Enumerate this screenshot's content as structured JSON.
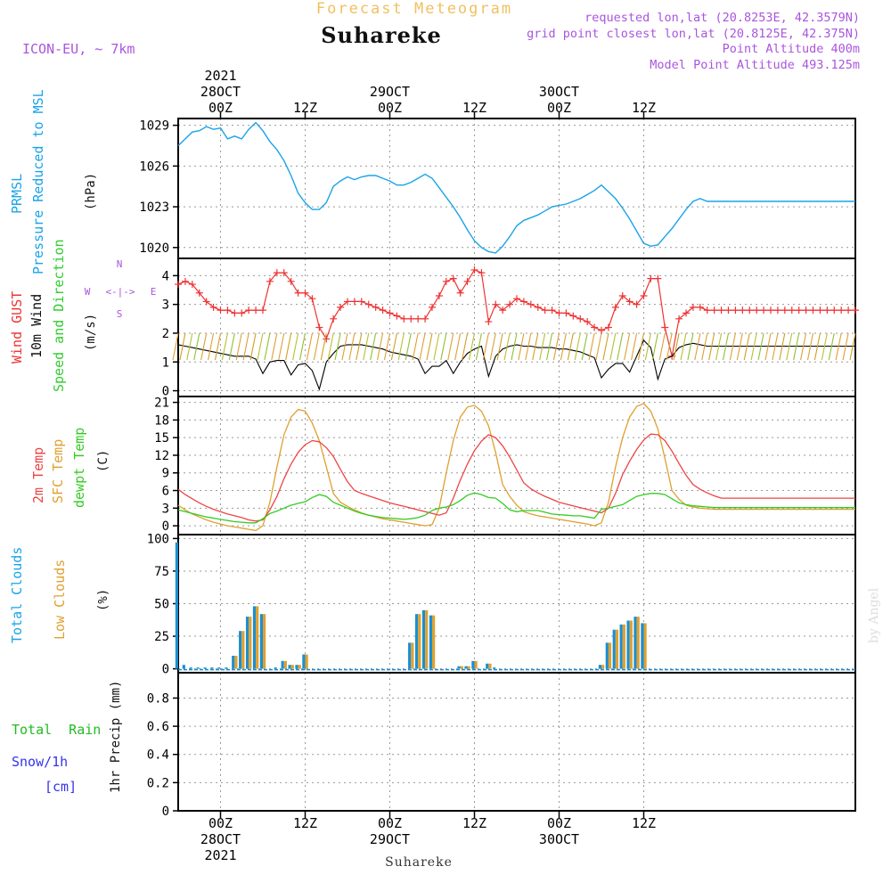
{
  "header": {
    "title": "Forecast Meteogram",
    "location": "Suhareke",
    "model": "ICON-EU, ~ 7km",
    "requested": "requested lon,lat (20.8253E, 42.3579N)",
    "grid_point": "grid point closest lon,lat (20.8125E, 42.375N)",
    "point_altitude": "Point Altitude 400m",
    "model_altitude": "Model Point Altitude 493.125m",
    "footer_location": "Suhareke",
    "watermark": "by Angel"
  },
  "colors": {
    "pressure": "#1aa3e8",
    "gust": "#ee3333",
    "wind": "#000000",
    "wind_arrows": "#33cc33",
    "temp2m": "#ee4444",
    "sfc_temp": "#e0a030",
    "dewpt": "#33cc22",
    "total_clouds": "#1a8fd0",
    "low_clouds": "#e0a030",
    "rain": "#22bb22",
    "snow": "#3333ee",
    "label_purple": "#aa55dd",
    "title_orange": "#f0c060"
  },
  "chart_data": [
    {
      "type": "line",
      "name": "pressure",
      "ylabel_colored": [
        "PRMSL",
        "Pressure Reduced to MSL"
      ],
      "unit": "(hPa)",
      "yticks": [
        1020,
        1023,
        1026,
        1029
      ],
      "ylim": [
        1019.2,
        1029.5
      ],
      "grid": true,
      "x": [
        -6,
        -5,
        -4,
        -3,
        -2,
        -1,
        0,
        1,
        2,
        3,
        4,
        5,
        6,
        7,
        8,
        9,
        10,
        11,
        12,
        13,
        14,
        15,
        16,
        17,
        18,
        19,
        20,
        21,
        22,
        23,
        24,
        25,
        26,
        27,
        28,
        29,
        30,
        31,
        32,
        33,
        34,
        35,
        36,
        37,
        38,
        39,
        40,
        41,
        42,
        43,
        44,
        45,
        46,
        47,
        48,
        49,
        50,
        51,
        52,
        53,
        54,
        55,
        56,
        57,
        58,
        59,
        60,
        61,
        62,
        63,
        64,
        65,
        66,
        67,
        68,
        69,
        70,
        71,
        72,
        73,
        74,
        75,
        76,
        77,
        78,
        79,
        80,
        81,
        82,
        83,
        84,
        85,
        86,
        87,
        88,
        89,
        90
      ],
      "series": [
        {
          "values": [
            1027.5,
            1028.0,
            1028.5,
            1028.6,
            1028.9,
            1028.7,
            1028.8,
            1028.0,
            1028.2,
            1028.0,
            1028.7,
            1029.2,
            1028.6,
            1027.8,
            1027.2,
            1026.4,
            1025.3,
            1024.0,
            1023.3,
            1022.8,
            1022.8,
            1023.3,
            1024.5,
            1024.9,
            1025.2,
            1025.0,
            1025.2,
            1025.3,
            1025.3,
            1025.1,
            1024.9,
            1024.6,
            1024.6,
            1024.8,
            1025.1,
            1025.4,
            1025.1,
            1024.4,
            1023.7,
            1023.0,
            1022.2,
            1021.3,
            1020.5,
            1020.0,
            1019.7,
            1019.6,
            1020.1,
            1020.8,
            1021.6,
            1022.0,
            1022.2,
            1022.4,
            1022.7,
            1023.0,
            1023.1,
            1023.2,
            1023.4,
            1023.6,
            1023.9,
            1024.2,
            1024.6,
            1024.1,
            1023.6,
            1022.9,
            1022.1,
            1021.2,
            1020.3,
            1020.1,
            1020.2,
            1020.8,
            1021.4,
            1022.1,
            1022.8,
            1023.4,
            1023.6,
            1023.4,
            1023.4,
            1023.4,
            1023.4,
            1023.4,
            1023.4,
            1023.4,
            1023.4,
            1023.4,
            1023.4,
            1023.4,
            1023.4,
            1023.4,
            1023.4,
            1023.4,
            1023.4,
            1023.4,
            1023.4,
            1023.4,
            1023.4,
            1023.4,
            1023.4
          ]
        }
      ]
    },
    {
      "type": "line",
      "name": "wind",
      "ylabel_colored": [
        "Wind GUST",
        "10m Wind",
        "Speed and Direction"
      ],
      "unit": "(m/s)",
      "compass": {
        "n": "N",
        "s": "S",
        "w": "W",
        "e": "E",
        "arrow": "<-|->"
      },
      "yticks": [
        0,
        1,
        2,
        3,
        4
      ],
      "ylim": [
        -0.2,
        4.6
      ],
      "grid": true,
      "gust_x": [
        -6,
        -5,
        -4,
        -3,
        -2,
        -1,
        0,
        1,
        2,
        3,
        4,
        5,
        6,
        7,
        8,
        9,
        10,
        11,
        12,
        13,
        14,
        15,
        16,
        17,
        18,
        19,
        20,
        21,
        22,
        23,
        24,
        25,
        26,
        27,
        28,
        29,
        30,
        31,
        32,
        33,
        34,
        35,
        36,
        37,
        38,
        39,
        40,
        41,
        42,
        43,
        44,
        45,
        46,
        47,
        48,
        49,
        50,
        51,
        52,
        53,
        54,
        55,
        56,
        57,
        58,
        59,
        60,
        61,
        62,
        63,
        64,
        65,
        66,
        67,
        68,
        69,
        70,
        71,
        72,
        73,
        74,
        75,
        76,
        77,
        78,
        79,
        80,
        81,
        82,
        83,
        84,
        85,
        86,
        87,
        88,
        89,
        90
      ],
      "gust": [
        3.7,
        3.8,
        3.7,
        3.4,
        3.1,
        2.9,
        2.8,
        2.8,
        2.7,
        2.7,
        2.8,
        2.8,
        2.8,
        3.8,
        4.1,
        4.1,
        3.8,
        3.4,
        3.4,
        3.2,
        2.2,
        1.8,
        2.5,
        2.9,
        3.1,
        3.1,
        3.1,
        3.0,
        2.9,
        2.8,
        2.7,
        2.6,
        2.5,
        2.5,
        2.5,
        2.5,
        2.9,
        3.3,
        3.8,
        3.9,
        3.4,
        3.8,
        4.2,
        4.1,
        2.4,
        3.0,
        2.8,
        3.0,
        3.2,
        3.1,
        3.0,
        2.9,
        2.8,
        2.8,
        2.7,
        2.7,
        2.6,
        2.5,
        2.4,
        2.2,
        2.1,
        2.2,
        2.9,
        3.3,
        3.1,
        3.0,
        3.3,
        3.9,
        3.9,
        2.2,
        1.2,
        2.5,
        2.7,
        2.9,
        2.9,
        2.8,
        2.8,
        2.8,
        2.8,
        2.8,
        2.8,
        2.8,
        2.8,
        2.8,
        2.8,
        2.8,
        2.8,
        2.8,
        2.8,
        2.8,
        2.8,
        2.8,
        2.8,
        2.8,
        2.8,
        2.8,
        2.8
      ],
      "wind": [
        1.6,
        1.55,
        1.5,
        1.45,
        1.4,
        1.35,
        1.3,
        1.25,
        1.2,
        1.2,
        1.2,
        1.1,
        0.6,
        1.0,
        1.05,
        1.05,
        0.55,
        0.9,
        0.95,
        0.7,
        0.05,
        1.0,
        1.3,
        1.55,
        1.6,
        1.6,
        1.6,
        1.55,
        1.5,
        1.45,
        1.35,
        1.3,
        1.25,
        1.2,
        1.1,
        0.6,
        0.85,
        0.85,
        1.05,
        0.6,
        1.0,
        1.3,
        1.45,
        1.55,
        0.5,
        1.2,
        1.45,
        1.55,
        1.6,
        1.55,
        1.55,
        1.5,
        1.5,
        1.5,
        1.45,
        1.45,
        1.4,
        1.35,
        1.25,
        1.15,
        0.45,
        0.75,
        0.95,
        0.95,
        0.65,
        1.2,
        1.75,
        1.5,
        0.4,
        1.1,
        1.2,
        1.5,
        1.6,
        1.65,
        1.6,
        1.55,
        1.55,
        1.55,
        1.55,
        1.55,
        1.55,
        1.55,
        1.55,
        1.55,
        1.55,
        1.55,
        1.55,
        1.55,
        1.55,
        1.55,
        1.55,
        1.55,
        1.55,
        1.55,
        1.55,
        1.55,
        1.55
      ]
    },
    {
      "type": "line",
      "name": "temperature",
      "ylabel_colored": [
        "2m Temp",
        "SFC Temp",
        "dewpt Temp"
      ],
      "unit": "(C)",
      "yticks": [
        0,
        3,
        6,
        9,
        12,
        15,
        18,
        21
      ],
      "ylim": [
        -1.5,
        22
      ],
      "grid": true,
      "series": [
        {
          "name": "2m Temp",
          "values": [
            6.2,
            5.3,
            4.6,
            3.9,
            3.3,
            2.8,
            2.4,
            2.0,
            1.7,
            1.4,
            1.0,
            0.8,
            1.0,
            2.7,
            5.0,
            8.0,
            10.5,
            12.5,
            13.8,
            14.5,
            14.3,
            13.3,
            11.8,
            9.6,
            7.5,
            6.0,
            5.5,
            5.1,
            4.7,
            4.3,
            3.9,
            3.6,
            3.3,
            3.0,
            2.7,
            2.4,
            2.1,
            1.8,
            2.2,
            4.7,
            7.8,
            10.5,
            12.8,
            14.4,
            15.5,
            15.0,
            13.6,
            11.7,
            9.5,
            7.3,
            6.3,
            5.6,
            5.0,
            4.5,
            4.0,
            3.7,
            3.4,
            3.1,
            2.8,
            2.5,
            2.2,
            3.0,
            5.5,
            8.7,
            11.0,
            13.0,
            14.6,
            15.6,
            15.5,
            14.5,
            12.7,
            10.6,
            8.6,
            7.0,
            6.2,
            5.6,
            5.1,
            4.7,
            4.7,
            4.7,
            4.7,
            4.7,
            4.7,
            4.7,
            4.7,
            4.7,
            4.7,
            4.7,
            4.7,
            4.7,
            4.7,
            4.7,
            4.7,
            4.7,
            4.7,
            4.7,
            4.7
          ]
        },
        {
          "name": "SFC Temp",
          "values": [
            3.5,
            2.7,
            2.0,
            1.5,
            1.0,
            0.6,
            0.3,
            0.0,
            -0.2,
            -0.4,
            -0.6,
            -0.8,
            0.0,
            4.0,
            10.0,
            15.5,
            18.5,
            19.8,
            19.5,
            17.5,
            14.5,
            10.0,
            5.5,
            4.0,
            3.3,
            2.7,
            2.2,
            1.8,
            1.5,
            1.2,
            1.0,
            0.8,
            0.6,
            0.4,
            0.2,
            0.0,
            0.2,
            3.0,
            9.0,
            14.5,
            18.5,
            20.2,
            20.5,
            19.5,
            17.0,
            12.5,
            7.0,
            5.0,
            3.5,
            2.4,
            2.0,
            1.7,
            1.5,
            1.3,
            1.1,
            0.9,
            0.7,
            0.5,
            0.3,
            0.0,
            0.5,
            4.0,
            10.0,
            15.0,
            18.5,
            20.3,
            20.8,
            19.5,
            16.5,
            11.5,
            6.0,
            4.5,
            3.5,
            3.2,
            3.0,
            2.9,
            2.8,
            2.8,
            2.8,
            2.8,
            2.8,
            2.8,
            2.8,
            2.8,
            2.8,
            2.8,
            2.8,
            2.8,
            2.8,
            2.8,
            2.8,
            2.8,
            2.8,
            2.8,
            2.8,
            2.8,
            2.8
          ]
        },
        {
          "name": "dewpt Temp",
          "values": [
            2.7,
            2.4,
            2.1,
            1.8,
            1.5,
            1.3,
            1.1,
            0.9,
            0.7,
            0.6,
            0.5,
            0.5,
            1.2,
            2.1,
            2.5,
            3.0,
            3.5,
            3.8,
            4.1,
            4.8,
            5.3,
            5.0,
            4.0,
            3.5,
            3.0,
            2.5,
            2.1,
            1.8,
            1.6,
            1.4,
            1.3,
            1.2,
            1.1,
            1.2,
            1.4,
            1.8,
            2.6,
            3.0,
            3.2,
            3.6,
            4.3,
            5.2,
            5.6,
            5.3,
            4.8,
            4.7,
            3.8,
            2.7,
            2.4,
            2.6,
            2.6,
            2.6,
            2.3,
            2.0,
            1.9,
            1.8,
            1.7,
            1.7,
            1.5,
            1.3,
            2.8,
            3.0,
            3.3,
            3.6,
            4.3,
            5.0,
            5.3,
            5.5,
            5.5,
            5.3,
            4.6,
            3.9,
            3.6,
            3.4,
            3.3,
            3.2,
            3.1,
            3.1,
            3.1,
            3.1,
            3.1,
            3.1,
            3.1,
            3.1,
            3.1,
            3.1,
            3.1,
            3.1,
            3.1,
            3.1,
            3.1,
            3.1,
            3.1,
            3.1,
            3.1,
            3.1,
            3.1
          ]
        }
      ]
    },
    {
      "type": "bar",
      "name": "clouds",
      "ylabel_colored": [
        "Total Clouds",
        "Low Clouds"
      ],
      "unit": "(%)",
      "yticks": [
        0,
        25,
        50,
        75,
        100
      ],
      "ylim": [
        -3,
        103
      ],
      "grid": true,
      "x": [
        -6,
        -5,
        -4,
        -3,
        -2,
        -1,
        0,
        1,
        2,
        3,
        4,
        5,
        6,
        7,
        8,
        9,
        10,
        11,
        12,
        13,
        14,
        15,
        16,
        17,
        18,
        19,
        20,
        21,
        22,
        23,
        24,
        25,
        26,
        27,
        28,
        29,
        30,
        31,
        32,
        33,
        34,
        35,
        36,
        37,
        38,
        39,
        40,
        41,
        42,
        43,
        44,
        45,
        46,
        47,
        48,
        49,
        50,
        51,
        52,
        53,
        54,
        55,
        56,
        57,
        58,
        59,
        60,
        61,
        62,
        63,
        64,
        65,
        66,
        67,
        68,
        69,
        70,
        71,
        72,
        73,
        74,
        75,
        76,
        77,
        78,
        79,
        80,
        81,
        82,
        83,
        84,
        85,
        86,
        87,
        88,
        89,
        90
      ],
      "total": [
        97,
        3,
        1,
        1,
        1,
        1,
        1,
        1,
        10,
        29,
        40,
        48,
        42,
        0,
        1,
        6,
        3,
        3,
        11,
        0,
        0,
        0,
        0,
        0,
        0,
        0,
        0,
        0,
        0,
        0,
        0,
        0,
        0,
        20,
        42,
        45,
        41,
        0,
        0,
        0,
        2,
        2,
        6,
        0,
        4,
        1,
        0,
        0,
        0,
        0,
        0,
        0,
        0,
        0,
        0,
        0,
        0,
        0,
        0,
        0,
        3,
        20,
        30,
        34,
        37,
        40,
        35,
        0,
        0,
        0,
        0,
        0,
        0,
        0,
        0,
        0,
        0,
        0,
        0,
        0,
        0,
        0,
        0,
        0,
        0,
        0,
        0,
        0,
        0,
        0,
        0,
        0,
        0,
        0,
        0,
        0,
        0
      ],
      "low": [
        0,
        0,
        0,
        0,
        0,
        0,
        0,
        0,
        10,
        29,
        40,
        48,
        42,
        0,
        0,
        6,
        3,
        3,
        11,
        0,
        0,
        0,
        0,
        0,
        0,
        0,
        0,
        0,
        0,
        0,
        0,
        0,
        0,
        20,
        42,
        45,
        41,
        0,
        0,
        0,
        2,
        2,
        6,
        0,
        4,
        0,
        0,
        0,
        0,
        0,
        0,
        0,
        0,
        0,
        0,
        0,
        0,
        0,
        0,
        0,
        3,
        20,
        30,
        34,
        37,
        40,
        35,
        0,
        0,
        0,
        0,
        0,
        0,
        0,
        0,
        0,
        0,
        0,
        0,
        0,
        0,
        0,
        0,
        0,
        0,
        0,
        0,
        0,
        0,
        0,
        0,
        0,
        0,
        0,
        0,
        0,
        0
      ]
    },
    {
      "type": "bar",
      "name": "precip",
      "ylabel_colored": [
        "Total Rain",
        "Snow/1h",
        "[cm]"
      ],
      "unit": "1hr Precip (mm)",
      "yticks": [
        0,
        0.2,
        0.4,
        0.6,
        0.8
      ],
      "ylim": [
        0,
        0.98
      ],
      "grid": true,
      "values": []
    }
  ],
  "time_axis": {
    "ticks": [
      {
        "h": 0,
        "top": [
          "2021",
          "28OCT",
          "00Z"
        ],
        "bottom": [
          "00Z",
          "28OCT",
          "2021"
        ]
      },
      {
        "h": 12,
        "top": [
          "12Z"
        ],
        "bottom": [
          "12Z"
        ]
      },
      {
        "h": 24,
        "top": [
          "29OCT",
          "00Z"
        ],
        "bottom": [
          "00Z",
          "29OCT"
        ]
      },
      {
        "h": 36,
        "top": [
          "12Z"
        ],
        "bottom": [
          "12Z"
        ]
      },
      {
        "h": 48,
        "top": [
          "30OCT",
          "00Z"
        ],
        "bottom": [
          "00Z",
          "30OCT"
        ]
      },
      {
        "h": 60,
        "top": [
          "12Z"
        ],
        "bottom": [
          "12Z"
        ]
      }
    ]
  }
}
